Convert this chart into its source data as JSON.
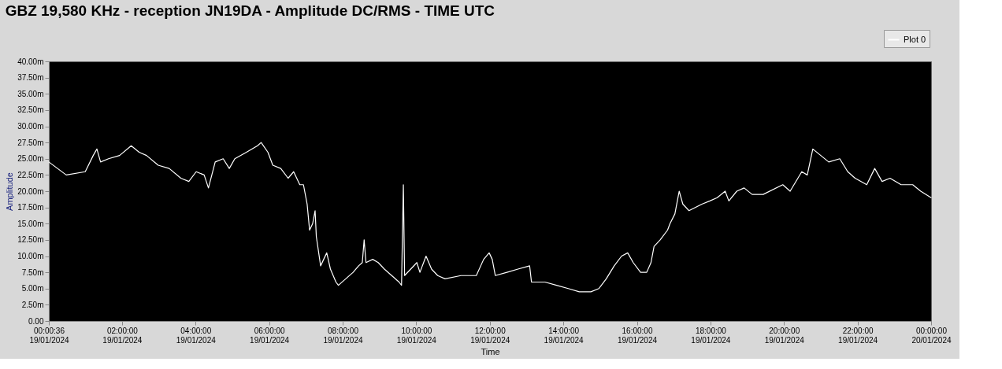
{
  "chart_data": {
    "type": "line",
    "title": "GBZ  19,580 KHz - reception JN19DA -  Amplitude DC/RMS   - TIME UTC",
    "xlabel": "Time",
    "ylabel": "Amplitude",
    "legend": "top right",
    "grid": false,
    "marker": "none",
    "line_style": "solid",
    "xlim": [
      "2024-01-19T00:00:36",
      "2024-01-20T00:00"
    ],
    "xticks": [
      {
        "value": "2024-01-19T00:00:36",
        "label": "00:00:36\n19/01/2024"
      },
      {
        "value": "2024-01-19T02:00",
        "label": "02:00:00\n19/01/2024"
      },
      {
        "value": "2024-01-19T04:00",
        "label": "04:00:00\n19/01/2024"
      },
      {
        "value": "2024-01-19T06:00",
        "label": "06:00:00\n19/01/2024"
      },
      {
        "value": "2024-01-19T08:00",
        "label": "08:00:00\n19/01/2024"
      },
      {
        "value": "2024-01-19T10:00",
        "label": "10:00:00\n19/01/2024"
      },
      {
        "value": "2024-01-19T12:00",
        "label": "12:00:00\n19/01/2024"
      },
      {
        "value": "2024-01-19T14:00",
        "label": "14:00:00\n19/01/2024"
      },
      {
        "value": "2024-01-19T16:00",
        "label": "16:00:00\n19/01/2024"
      },
      {
        "value": "2024-01-19T18:00",
        "label": "18:00:00\n19/01/2024"
      },
      {
        "value": "2024-01-19T20:00",
        "label": "20:00:00\n19/01/2024"
      },
      {
        "value": "2024-01-19T22:00",
        "label": "22:00:00\n19/01/2024"
      },
      {
        "value": "2024-01-20T00:00",
        "label": "00:00:00\n20/01/2024"
      }
    ],
    "ylim": [
      0,
      40
    ],
    "yticks": [
      {
        "value": 0,
        "label": "0.00"
      },
      {
        "value": 2.5,
        "label": "2.50m"
      },
      {
        "value": 5,
        "label": "5.00m"
      },
      {
        "value": 7.5,
        "label": "7.50m"
      },
      {
        "value": 10,
        "label": "10.00m"
      },
      {
        "value": 12.5,
        "label": "12.50m"
      },
      {
        "value": 15,
        "label": "15.00m"
      },
      {
        "value": 17.5,
        "label": "17.50m"
      },
      {
        "value": 20,
        "label": "20.00m"
      },
      {
        "value": 22.5,
        "label": "22.50m"
      },
      {
        "value": 25,
        "label": "25.00m"
      },
      {
        "value": 27.5,
        "label": "27.50m"
      },
      {
        "value": 30,
        "label": "30.00m"
      },
      {
        "value": 32.5,
        "label": "32.50m"
      },
      {
        "value": 35,
        "label": "35.00m"
      },
      {
        "value": 37.5,
        "label": "37.50m"
      },
      {
        "value": 40,
        "label": "40.00m"
      }
    ],
    "x": [
      "2024-01-19T00:00:36",
      "2024-01-19T00:29",
      "2024-01-19T01:00",
      "2024-01-19T01:13",
      "2024-01-19T01:19",
      "2024-01-19T01:25",
      "2024-01-19T01:38",
      "2024-01-19T01:56",
      "2024-01-19T02:15",
      "2024-01-19T02:28",
      "2024-01-19T02:40",
      "2024-01-19T02:59",
      "2024-01-19T03:17",
      "2024-01-19T03:36",
      "2024-01-19T03:49",
      "2024-01-19T04:01",
      "2024-01-19T04:14",
      "2024-01-19T04:21",
      "2024-01-19T04:32",
      "2024-01-19T04:45",
      "2024-01-19T04:55",
      "2024-01-19T05:04",
      "2024-01-19T05:23",
      "2024-01-19T05:41",
      "2024-01-19T05:47",
      "2024-01-19T05:58",
      "2024-01-19T06:06",
      "2024-01-19T06:19",
      "2024-01-19T06:31",
      "2024-01-19T06:40",
      "2024-01-19T06:50",
      "2024-01-19T06:56",
      "2024-01-19T07:02",
      "2024-01-19T07:06",
      "2024-01-19T07:11",
      "2024-01-19T07:15",
      "2024-01-19T07:17",
      "2024-01-19T07:24",
      "2024-01-19T07:34",
      "2024-01-19T07:40",
      "2024-01-19T07:49",
      "2024-01-19T07:53",
      "2024-01-19T08:05",
      "2024-01-19T08:17",
      "2024-01-19T08:26",
      "2024-01-19T08:32",
      "2024-01-19T08:35",
      "2024-01-19T08:38",
      "2024-01-19T08:49",
      "2024-01-19T08:58",
      "2024-01-19T09:08",
      "2024-01-19T09:20",
      "2024-01-19T09:32",
      "2024-01-19T09:36",
      "2024-01-19T09:39",
      "2024-01-19T09:41",
      "2024-01-19T09:51",
      "2024-01-19T10:01",
      "2024-01-19T10:06",
      "2024-01-19T10:16",
      "2024-01-19T10:25",
      "2024-01-19T10:35",
      "2024-01-19T10:47",
      "2024-01-19T11:13",
      "2024-01-19T11:38",
      "2024-01-19T11:50",
      "2024-01-19T11:59",
      "2024-01-19T12:04",
      "2024-01-19T12:09",
      "2024-01-19T12:28",
      "2024-01-19T12:46",
      "2024-01-19T13:05",
      "2024-01-19T13:08",
      "2024-01-19T13:30",
      "2024-01-19T13:49",
      "2024-01-19T14:08",
      "2024-01-19T14:26",
      "2024-01-19T14:45",
      "2024-01-19T14:58",
      "2024-01-19T15:10",
      "2024-01-19T15:23",
      "2024-01-19T15:35",
      "2024-01-19T15:45",
      "2024-01-19T15:54",
      "2024-01-19T16:06",
      "2024-01-19T16:16",
      "2024-01-19T16:23",
      "2024-01-19T16:28",
      "2024-01-19T16:38",
      "2024-01-19T16:50",
      "2024-01-19T16:54",
      "2024-01-19T17:02",
      "2024-01-19T17:09",
      "2024-01-19T17:15",
      "2024-01-19T17:25",
      "2024-01-19T17:46",
      "2024-01-19T17:59",
      "2024-01-19T18:11",
      "2024-01-19T18:24",
      "2024-01-19T18:30",
      "2024-01-19T18:43",
      "2024-01-19T18:55",
      "2024-01-19T19:08",
      "2024-01-19T19:26",
      "2024-01-19T19:58",
      "2024-01-19T20:10",
      "2024-01-19T20:29",
      "2024-01-19T20:38",
      "2024-01-19T20:47",
      "2024-01-19T21:00",
      "2024-01-19T21:13",
      "2024-01-19T21:31",
      "2024-01-19T21:44",
      "2024-01-19T21:56",
      "2024-01-19T22:15",
      "2024-01-19T22:28",
      "2024-01-19T22:40",
      "2024-01-19T22:53",
      "2024-01-19T23:11",
      "2024-01-19T23:30",
      "2024-01-19T23:43",
      "2024-01-20T00:00"
    ],
    "series": [
      {
        "name": "Plot 0",
        "color": "#ffffff",
        "values": [
          24.5,
          22.5,
          23,
          25.5,
          26.5,
          24.5,
          25,
          25.5,
          27,
          26,
          25.5,
          24,
          23.5,
          22,
          21.5,
          23,
          22.5,
          20.5,
          24.5,
          25,
          23.5,
          25,
          26,
          27,
          27.5,
          26,
          24,
          23.5,
          22,
          23,
          21,
          21,
          18,
          14,
          15,
          17,
          13,
          8.5,
          10.5,
          8,
          6,
          5.5,
          6.5,
          7.5,
          8.5,
          9,
          12.5,
          9,
          9.5,
          9,
          8,
          7,
          6,
          5.5,
          21,
          7,
          8,
          9,
          7.5,
          10,
          8,
          7,
          6.5,
          7,
          7,
          9.5,
          10.5,
          9.5,
          7,
          7.5,
          8,
          8.5,
          6,
          6,
          5.5,
          5,
          4.5,
          4.5,
          5,
          6.5,
          8.5,
          10,
          10.5,
          9,
          7.5,
          7.5,
          9,
          11.5,
          12.5,
          14,
          15,
          16.5,
          20,
          18,
          17,
          18,
          18.5,
          19,
          20,
          18.5,
          20,
          20.5,
          19.5,
          19.5,
          21,
          20,
          23,
          22.5,
          26.5,
          25.5,
          24.5,
          25,
          23,
          22,
          21,
          23.5,
          21.5,
          22,
          21,
          21,
          20,
          19
        ]
      }
    ]
  }
}
